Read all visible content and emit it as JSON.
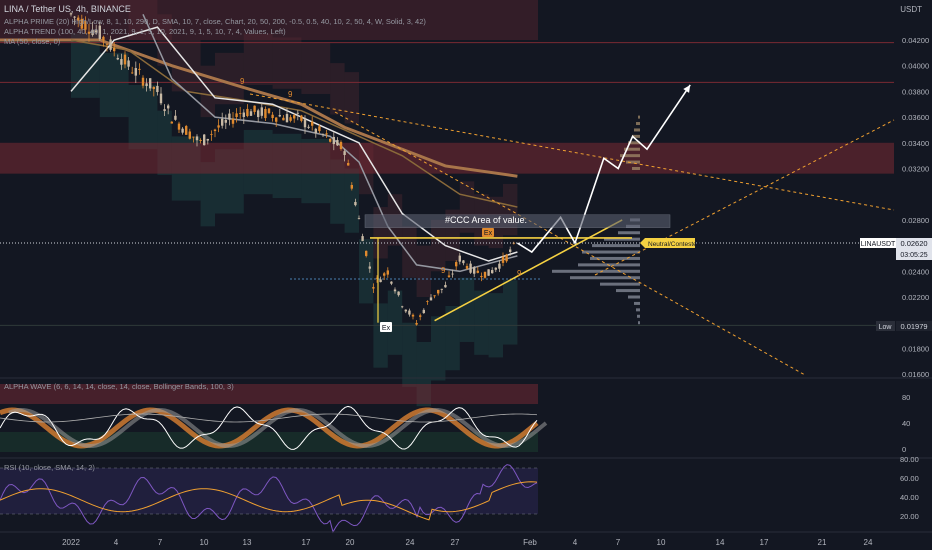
{
  "header": {
    "pair": "LINA / Tether US, 4h, BINANCE",
    "currency": "USDT",
    "indicators": [
      "ALPHA PRIME (20) High/Low, 8, 1, 10, 290, D, SMA, 10, 7, close, Chart, 20, 50, 200, -0.5, 0.5, 40, 10, 2, 50, 4, W, Solid, 3, 42)",
      "ALPHA TREND (100, 40, 40, 1, 2021, 9, 1, 5, 10, 2021, 9, 1, 5, 10, 7, 4, Values, Left)",
      "MA (50, close, 0)"
    ]
  },
  "price_scale": {
    "labels": [
      "0.04200",
      "0.04000",
      "0.03800",
      "0.03600",
      "0.03400",
      "0.03200",
      "0.02800",
      "0.02400",
      "0.02200",
      "0.01800",
      "0.01600"
    ],
    "last_symbol": "LINAUSDT",
    "last_price": "0.02620",
    "countdown": "03:05:25",
    "low_label": "Low",
    "low_price": "0.01979"
  },
  "annotations": {
    "area_of_value": "#CCC Area of value.",
    "neutral_tag": "Neutral/Contested",
    "ex_marks": [
      "Ex",
      "Ex"
    ],
    "count_marks": [
      "9",
      "9",
      "9",
      "9"
    ]
  },
  "wave_panel": {
    "title": "ALPHA WAVE (6, 6, 14, 14, close, 14, close, Bollinger Bands, 100, 3)",
    "scale": [
      "80",
      "40",
      "0"
    ]
  },
  "rsi_panel": {
    "title": "RSI (10, close, SMA, 14, 2)",
    "scale": [
      "80.00",
      "60.00",
      "40.00",
      "20.00"
    ]
  },
  "time_axis": [
    "2022",
    "4",
    "7",
    "10",
    "13",
    "17",
    "20",
    "24",
    "27",
    "Feb",
    "4",
    "7",
    "10",
    "14",
    "17",
    "21",
    "24"
  ],
  "colors": {
    "background": "#131722",
    "bull_candle": "#c8b9a5",
    "bear_candle": "#e08a2e",
    "pattern": "#f5d142",
    "projection": "#ffffff",
    "rsi": "#7e57c2",
    "rsi_ma": "#f0a030"
  },
  "chart_data": {
    "type": "line",
    "title": "LINA / Tether US, 4h, BINANCE",
    "y_unit": "USDT",
    "ylim": [
      0.0156,
      0.0432
    ],
    "price_path": [
      {
        "t": "2022-01-01",
        "price": 0.044
      },
      {
        "t": "2022-01-03",
        "price": 0.0425
      },
      {
        "t": "2022-01-05",
        "price": 0.04
      },
      {
        "t": "2022-01-07",
        "price": 0.038
      },
      {
        "t": "2022-01-08",
        "price": 0.036
      },
      {
        "t": "2022-01-10",
        "price": 0.034
      },
      {
        "t": "2022-01-11",
        "price": 0.035
      },
      {
        "t": "2022-01-13",
        "price": 0.0365
      },
      {
        "t": "2022-01-15",
        "price": 0.0362
      },
      {
        "t": "2022-01-17",
        "price": 0.0358
      },
      {
        "t": "2022-01-19",
        "price": 0.0342
      },
      {
        "t": "2022-01-20",
        "price": 0.0335
      },
      {
        "t": "2022-01-21",
        "price": 0.028
      },
      {
        "t": "2022-01-22",
        "price": 0.023
      },
      {
        "t": "2022-01-23",
        "price": 0.024
      },
      {
        "t": "2022-01-24",
        "price": 0.0215
      },
      {
        "t": "2022-01-25",
        "price": 0.02
      },
      {
        "t": "2022-01-26",
        "price": 0.022
      },
      {
        "t": "2022-01-27",
        "price": 0.0228
      },
      {
        "t": "2022-01-28",
        "price": 0.025
      },
      {
        "t": "2022-01-29",
        "price": 0.024
      },
      {
        "t": "2022-01-30",
        "price": 0.0238
      },
      {
        "t": "2022-01-31",
        "price": 0.0248
      },
      {
        "t": "2022-02-01",
        "price": 0.0262
      }
    ],
    "projection": [
      {
        "t": "2022-02-01",
        "price": 0.0262
      },
      {
        "t": "2022-02-02",
        "price": 0.0255
      },
      {
        "t": "2022-02-04",
        "price": 0.0282
      },
      {
        "t": "2022-02-05",
        "price": 0.0262
      },
      {
        "t": "2022-02-07",
        "price": 0.0328
      },
      {
        "t": "2022-02-08",
        "price": 0.032
      },
      {
        "t": "2022-02-09",
        "price": 0.0345
      },
      {
        "t": "2022-02-10",
        "price": 0.0335
      },
      {
        "t": "2022-02-13",
        "price": 0.0385
      }
    ],
    "levels": {
      "resistance_zone": [
        0.0316,
        0.034
      ],
      "area_of_value": [
        0.0274,
        0.0284
      ],
      "neckline": 0.0266,
      "last": 0.0262,
      "support": 0.0234,
      "low": 0.01979
    },
    "triangle": {
      "upper": 0.0266,
      "lower_from": {
        "t": "2022-01-25",
        "price": 0.02
      },
      "lower_to": {
        "t": "2022-02-08",
        "price": 0.028
      }
    },
    "grid": true
  }
}
